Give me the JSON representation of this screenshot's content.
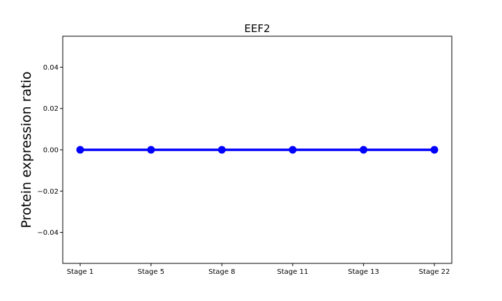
{
  "chart_data": {
    "type": "line",
    "title": "EEF2",
    "xlabel": "",
    "ylabel": "Protein expression ratio",
    "categories": [
      "Stage 1",
      "Stage 5",
      "Stage 8",
      "Stage 11",
      "Stage 13",
      "Stage 22"
    ],
    "series": [
      {
        "name": "EEF2",
        "values": [
          0,
          0,
          0,
          0,
          0,
          0
        ],
        "color": "#0000ff"
      }
    ],
    "ylim": [
      -0.055,
      0.055
    ],
    "yticks": [
      -0.04,
      -0.02,
      0.0,
      0.02,
      0.04
    ],
    "ytick_labels": [
      "−0.04",
      "−0.02",
      "0.00",
      "0.02",
      "0.04"
    ],
    "grid": false,
    "legend": false
  }
}
